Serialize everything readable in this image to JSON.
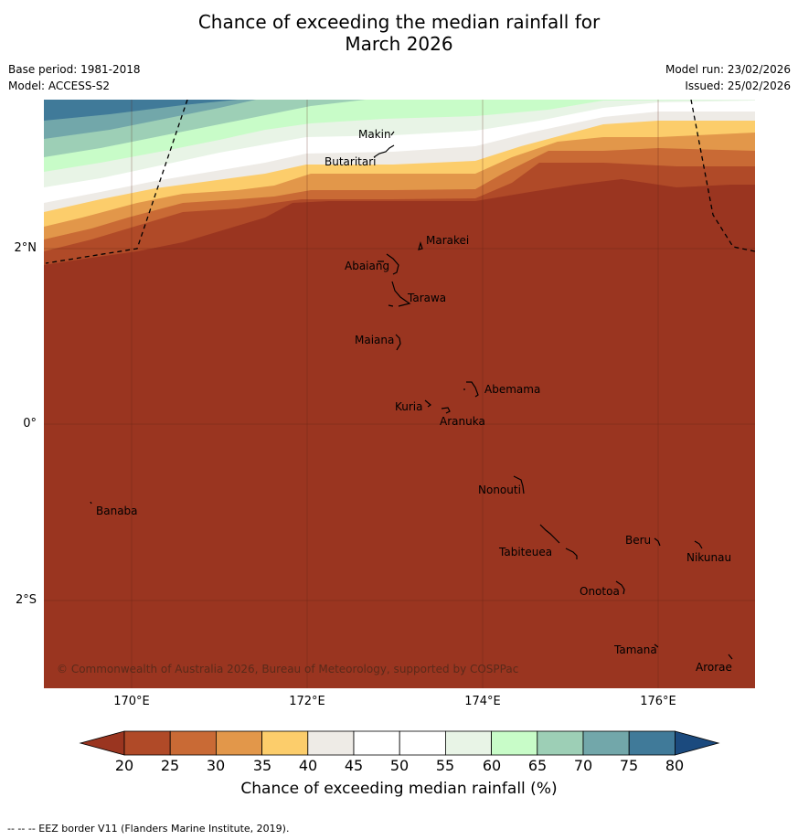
{
  "title_line1": "Chance of exceeding the median rainfall for",
  "title_line2": "March 2026",
  "base_period": "Base period: 1981-2018",
  "model": "Model: ACCESS-S2",
  "model_run": "Model run: 23/02/2026",
  "issued": "Issued: 25/02/2026",
  "copyright": "© Commonwealth of Australia 2026, Bureau of Meteorology, supported by COSPPac",
  "lat_labels": [
    "2°N",
    "0°",
    "2°S"
  ],
  "lon_labels": [
    "170°E",
    "172°E",
    "174°E",
    "176°E"
  ],
  "islands": [
    "Makin",
    "Butaritari",
    "Marakei",
    "Abaiang",
    "Tarawa",
    "Maiana",
    "Abemama",
    "Kuria",
    "Aranuka",
    "Nonouti",
    "Banaba",
    "Beru",
    "Nikunau",
    "Tabiteuea",
    "Onotoa",
    "Tamana",
    "Arorae"
  ],
  "colorbar": {
    "ticks": [
      "20",
      "25",
      "30",
      "35",
      "40",
      "45",
      "50",
      "55",
      "60",
      "65",
      "70",
      "75",
      "80"
    ],
    "colors": [
      "#9a3520",
      "#b04a28",
      "#c96a35",
      "#e2974a",
      "#fccd6b",
      "#eeebe6",
      "#ffffff",
      "#ffffff",
      "#e8f4e6",
      "#c8fcc8",
      "#9dcfb6",
      "#72a7aa",
      "#407a99",
      "#1b4a7e"
    ],
    "label": "Chance of exceeding median rainfall (%)"
  },
  "footnote": "--  --  -- EEZ border V11 (Flanders Marine Institute, 2019)."
}
